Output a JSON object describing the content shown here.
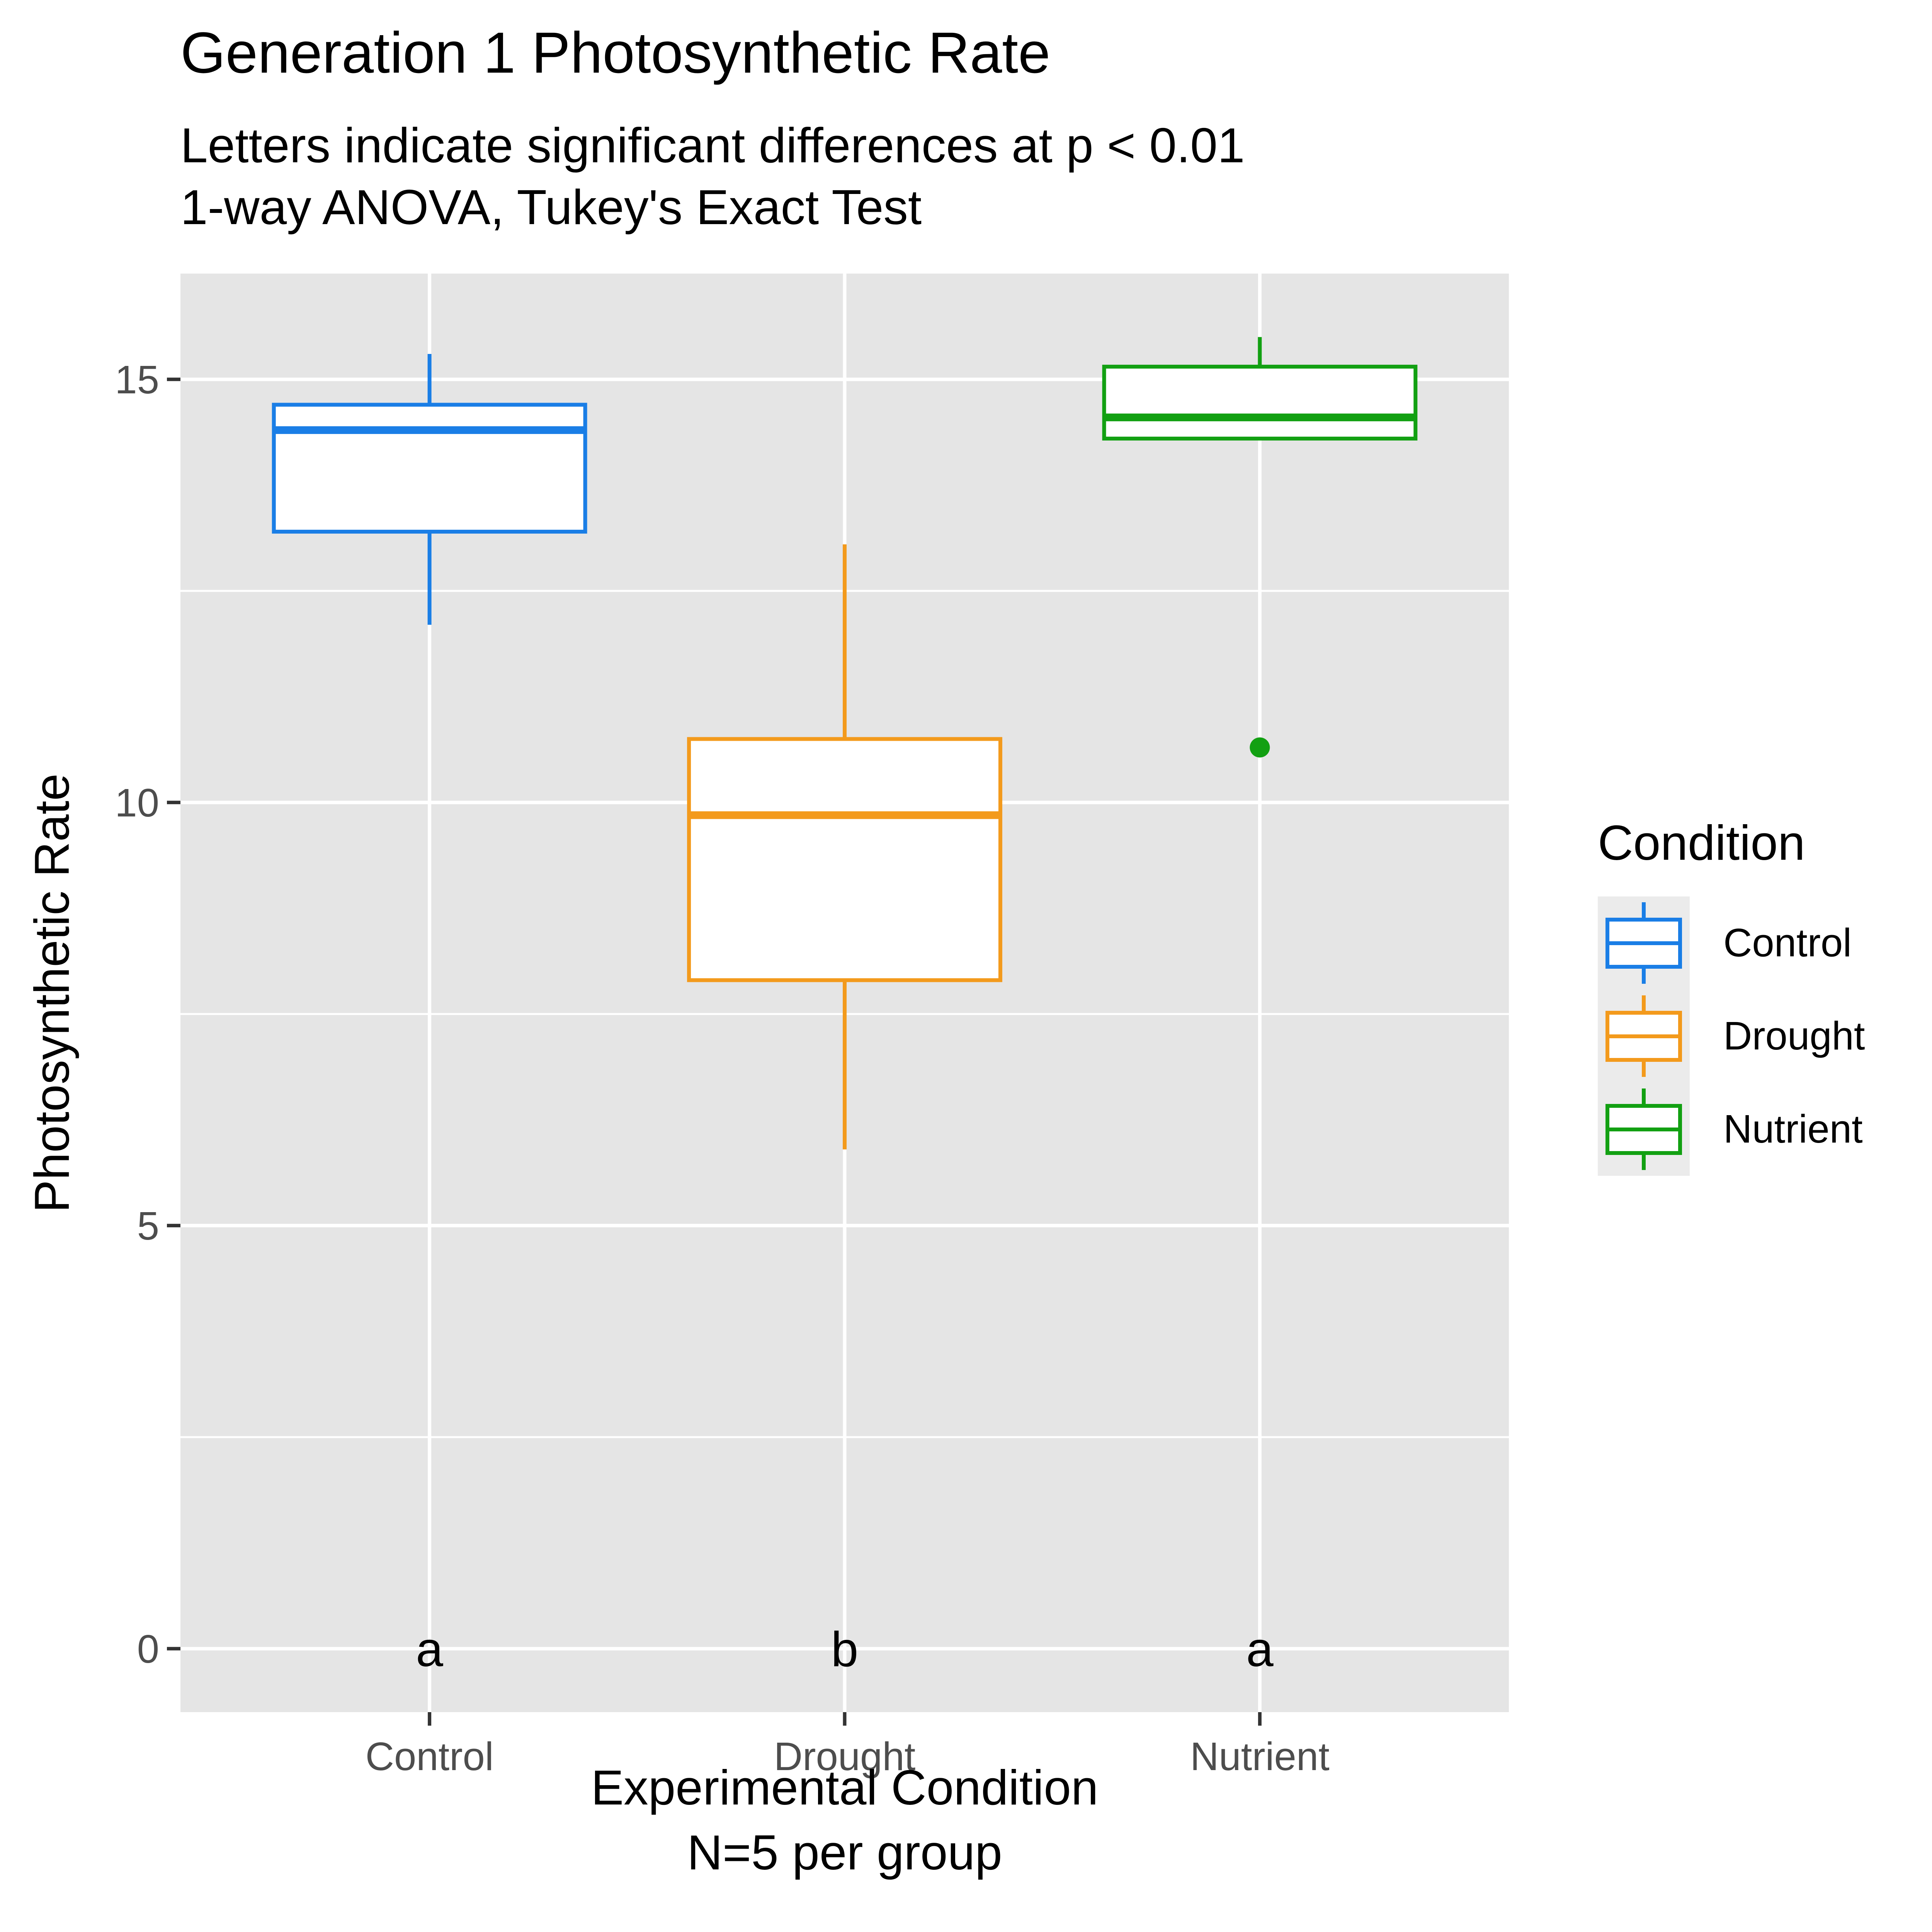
{
  "chart_data": {
    "type": "boxplot",
    "title": "Generation 1 Photosynthetic Rate",
    "subtitle_lines": [
      "Letters indicate significant differences at p < 0.01",
      "1-way ANOVA, Tukey's Exact Test"
    ],
    "xlabel_lines": [
      "Experimental Condition",
      "N=5 per group"
    ],
    "ylabel": "Photosynthetic Rate",
    "ylim": [
      -0.75,
      16.25
    ],
    "yticks": [
      0,
      5,
      10,
      15
    ],
    "yminor": [
      2.5,
      7.5,
      12.5
    ],
    "categories": [
      "Control",
      "Drought",
      "Nutrient"
    ],
    "legend": {
      "title": "Condition",
      "position": "right"
    },
    "grid": true,
    "groups": [
      {
        "name": "Control",
        "color": "#1a7ee6",
        "whisker_low": 12.1,
        "q1": 13.2,
        "median": 14.4,
        "q3": 14.7,
        "whisker_high": 15.3,
        "outliers": [],
        "letter": "a"
      },
      {
        "name": "Drought",
        "color": "#f39a1c",
        "whisker_low": 5.9,
        "q1": 7.9,
        "median": 9.85,
        "q3": 10.75,
        "whisker_high": 13.05,
        "outliers": [],
        "letter": "b"
      },
      {
        "name": "Nutrient",
        "color": "#12a012",
        "whisker_low": 14.3,
        "q1": 14.3,
        "median": 14.55,
        "q3": 15.15,
        "whisker_high": 15.5,
        "outliers": [
          10.65
        ],
        "letter": "a"
      }
    ]
  }
}
